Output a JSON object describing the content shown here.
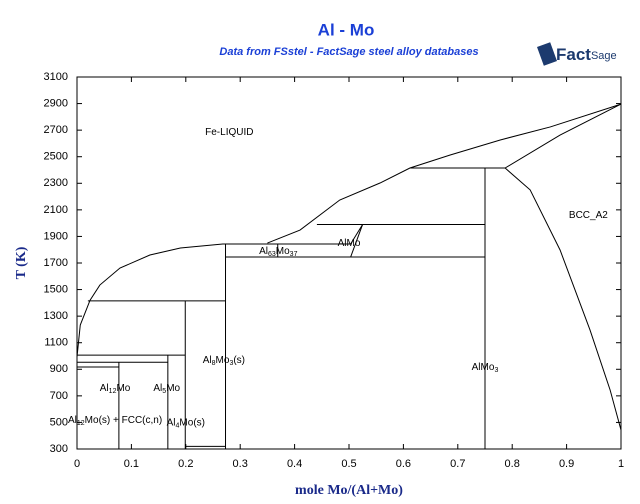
{
  "chart_data": {
    "type": "phase-diagram",
    "title": "Al - Mo",
    "subtitle": "Data from FSstel - FactSage steel alloy databases",
    "logo": [
      "Fact",
      "Sage"
    ],
    "xlabel": "mole Mo/(Al+Mo)",
    "ylabel": "T (K)",
    "xlim": [
      0,
      1
    ],
    "ylim": [
      300,
      3100
    ],
    "xticks": [
      0,
      0.1,
      0.2,
      0.3,
      0.4,
      0.5,
      0.6,
      0.7,
      0.8,
      0.9,
      1
    ],
    "yticks": [
      300,
      500,
      700,
      900,
      1100,
      1300,
      1500,
      1700,
      1900,
      2100,
      2300,
      2500,
      2700,
      2900,
      3100
    ],
    "color": "#000000",
    "boundaries": [
      {
        "x": [
          0,
          0.006,
          0.024,
          0.042,
          0.079,
          0.134,
          0.19,
          0.268,
          0.3
        ],
        "y": [
          993,
          1233,
          1420,
          1534,
          1662,
          1760,
          1813,
          1843,
          1843
        ]
      },
      {
        "x": [
          0.35,
          0.41,
          0.483,
          0.557,
          0.612,
          0.686,
          0.778,
          0.87,
          1
        ],
        "y": [
          1850,
          1948,
          2174,
          2302,
          2415,
          2513,
          2626,
          2724,
          2896
        ]
      },
      {
        "x": [
          1,
          0.888,
          0.787
        ],
        "y": [
          2896,
          2663,
          2415
        ]
      },
      {
        "x": [
          0.787,
          0.833,
          0.888,
          0.943,
          0.98,
          1
        ],
        "y": [
          2415,
          2250,
          1798,
          1196,
          744,
          443
        ]
      },
      {
        "x": [
          0.612,
          0.787
        ],
        "y": [
          2415,
          2415
        ]
      },
      {
        "x": [
          0.75,
          0.75
        ],
        "y": [
          2415,
          300
        ]
      },
      {
        "x": [
          0.441,
          0.75
        ],
        "y": [
          1990,
          1990
        ]
      },
      {
        "x": [
          0.503,
          0.525
        ],
        "y": [
          1745,
          1990
        ]
      },
      {
        "x": [
          0.503,
          0.525
        ],
        "y": [
          1843,
          1990
        ]
      },
      {
        "x": [
          0.342,
          0.503
        ],
        "y": [
          1843,
          1843
        ]
      },
      {
        "x": [
          0.273,
          0.75
        ],
        "y": [
          1745,
          1745
        ]
      },
      {
        "x": [
          0.273,
          0.369
        ],
        "y": [
          1843,
          1843
        ]
      },
      {
        "x": [
          0.369,
          0.369
        ],
        "y": [
          1843,
          1745
        ]
      },
      {
        "x": [
          0.273,
          0.273
        ],
        "y": [
          1843,
          300
        ]
      },
      {
        "x": [
          0.02,
          0.273
        ],
        "y": [
          1415,
          1415
        ]
      },
      {
        "x": [
          0.199,
          0.199
        ],
        "y": [
          1415,
          300
        ]
      },
      {
        "x": [
          0,
          0.199
        ],
        "y": [
          1007,
          1007
        ]
      },
      {
        "x": [
          0.167,
          0.167
        ],
        "y": [
          1007,
          300
        ]
      },
      {
        "x": [
          0,
          0.167
        ],
        "y": [
          953,
          953
        ]
      },
      {
        "x": [
          0.077,
          0.077
        ],
        "y": [
          953,
          300
        ]
      },
      {
        "x": [
          0,
          0.077
        ],
        "y": [
          917,
          917
        ]
      },
      {
        "x": [
          0.199,
          0.273
        ],
        "y": [
          320,
          320
        ]
      }
    ],
    "annotations": [
      {
        "text": [
          "Fe-LIQUID"
        ],
        "x": 0.28,
        "y": 2686
      },
      {
        "text": [
          "BCC_A2"
        ],
        "x": 0.94,
        "y": 2061
      },
      {
        "text": [
          "Al",
          "8",
          "Mo",
          "3",
          "(s)"
        ],
        "x": 0.27,
        "y": 970
      },
      {
        "text": [
          "AlMo"
        ],
        "x": 0.5,
        "y": 1850
      },
      {
        "text": [
          "Al",
          "63",
          "Mo",
          "37"
        ],
        "x": 0.37,
        "y": 1790
      },
      {
        "text": [
          "AlMo",
          "3"
        ],
        "x": 0.75,
        "y": 917
      },
      {
        "text": [
          "Al",
          "12",
          "Mo"
        ],
        "x": 0.07,
        "y": 760
      },
      {
        "text": [
          "Al",
          "5",
          "Mo"
        ],
        "x": 0.165,
        "y": 760
      },
      {
        "text": [
          "Al",
          "4",
          "Mo(s)"
        ],
        "x": 0.2,
        "y": 500
      },
      {
        "text": [
          "Al",
          "12",
          "Mo(s) + FCC(c,n)"
        ],
        "x": 0.07,
        "y": 520
      }
    ]
  }
}
